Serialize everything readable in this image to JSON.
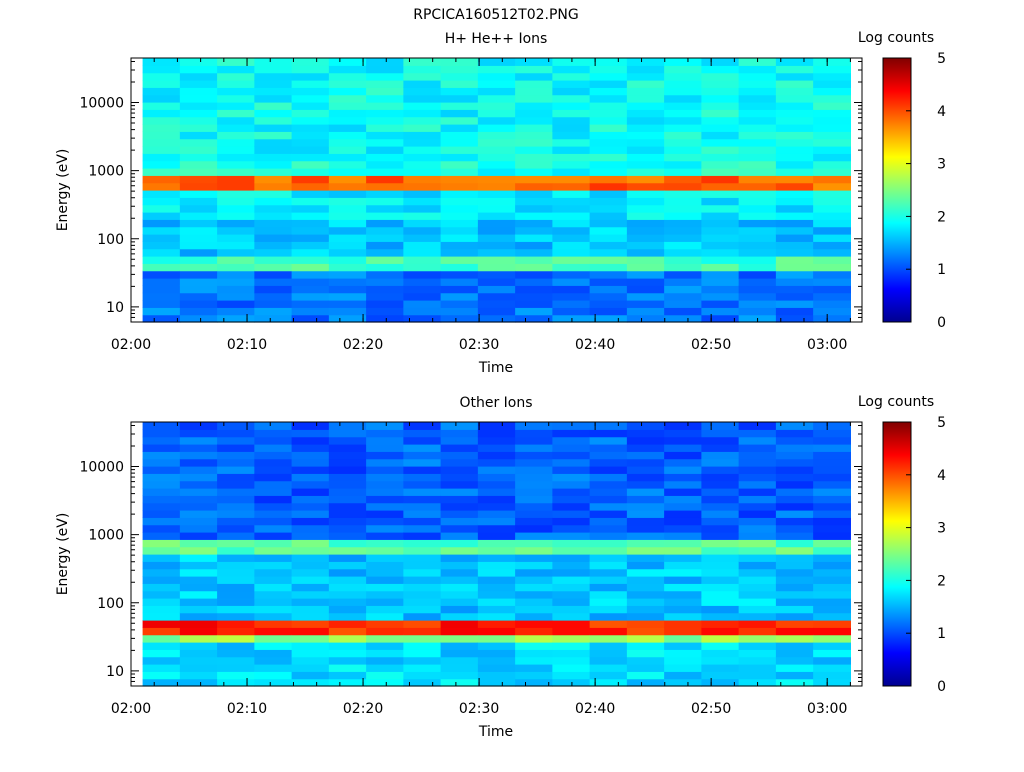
{
  "figure_title": "RPCICA160512T02.PNG",
  "colormap": [
    "#00008f",
    "#0000ff",
    "#0080ff",
    "#00ffff",
    "#80ff80",
    "#ffff00",
    "#ff8000",
    "#ff0000",
    "#800000"
  ],
  "chart_data": [
    {
      "type": "heatmap",
      "title": "H+ He++ Ions",
      "xlabel": "Time",
      "ylabel": "Energy (eV)",
      "xlim": [
        "02:00",
        "03:03"
      ],
      "x_ticks": [
        "02:00",
        "02:10",
        "02:20",
        "02:30",
        "02:40",
        "02:50",
        "03:00"
      ],
      "ylim": [
        6,
        45000
      ],
      "y_scale": "log",
      "y_ticks": [
        "10",
        "100",
        "1000",
        "10000"
      ],
      "data_x_start": "02:01",
      "data_x_end": "03:02",
      "colorbar": {
        "label": "Log counts",
        "range": [
          0,
          5
        ],
        "ticks": [
          "0",
          "1",
          "2",
          "3",
          "4",
          "5"
        ]
      },
      "energy_bands": [
        {
          "e_min": 6,
          "e_max": 35,
          "log_counts": 1.2
        },
        {
          "e_min": 35,
          "e_max": 50,
          "log_counts": 2.2
        },
        {
          "e_min": 50,
          "e_max": 200,
          "log_counts": 1.6
        },
        {
          "e_min": 200,
          "e_max": 550,
          "log_counts": 1.8
        },
        {
          "e_min": 550,
          "e_max": 800,
          "log_counts": 3.9
        },
        {
          "e_min": 800,
          "e_max": 1350,
          "log_counts": 2.0
        },
        {
          "e_min": 1350,
          "e_max": 1550,
          "log_counts": 2.5
        },
        {
          "e_min": 1550,
          "e_max": 45000,
          "log_counts": 1.9
        }
      ]
    },
    {
      "type": "heatmap",
      "title": "Other Ions",
      "xlabel": "Time",
      "ylabel": "Energy (eV)",
      "xlim": [
        "02:00",
        "03:03"
      ],
      "x_ticks": [
        "02:00",
        "02:10",
        "02:20",
        "02:30",
        "02:40",
        "02:50",
        "03:00"
      ],
      "ylim": [
        6,
        45000
      ],
      "y_scale": "log",
      "y_ticks": [
        "10",
        "100",
        "1000",
        "10000"
      ],
      "data_x_start": "02:01",
      "data_x_end": "03:02",
      "colorbar": {
        "label": "Log counts",
        "range": [
          0,
          5
        ],
        "ticks": [
          "0",
          "1",
          "2",
          "3",
          "4",
          "5"
        ]
      },
      "energy_bands": [
        {
          "e_min": 6,
          "e_max": 28,
          "log_counts": 1.7
        },
        {
          "e_min": 28,
          "e_max": 35,
          "log_counts": 2.6
        },
        {
          "e_min": 35,
          "e_max": 52,
          "log_counts": 4.2
        },
        {
          "e_min": 52,
          "e_max": 500,
          "log_counts": 1.6
        },
        {
          "e_min": 500,
          "e_max": 800,
          "log_counts": 2.3
        },
        {
          "e_min": 800,
          "e_max": 45000,
          "log_counts": 1.1
        }
      ]
    }
  ]
}
